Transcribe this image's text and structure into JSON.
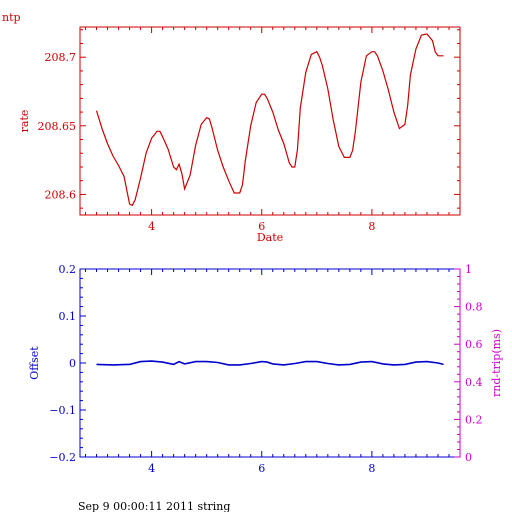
{
  "page": {
    "top_label": "ntp",
    "footer": "Sep  9 00:00:11 2011 string"
  },
  "chart_data": [
    {
      "type": "line",
      "title": "ntp",
      "xlabel": "Date",
      "ylabel": "rate",
      "xlim": [
        2.7,
        9.6
      ],
      "ylim": [
        208.585,
        208.722
      ],
      "xticks": [
        4,
        6,
        8
      ],
      "yticks": [
        208.6,
        208.65,
        208.7
      ],
      "ytick_labels": [
        "208.6",
        "208.65",
        "208.7"
      ],
      "color": "#cc0000",
      "series": [
        {
          "x": [
            3.0,
            3.1,
            3.2,
            3.3,
            3.4,
            3.5,
            3.55,
            3.6,
            3.65,
            3.7,
            3.8,
            3.9,
            4.0,
            4.1,
            4.15,
            4.2,
            4.3,
            4.4,
            4.45,
            4.5,
            4.55,
            4.6,
            4.7,
            4.8,
            4.9,
            5.0,
            5.05,
            5.1,
            5.2,
            5.3,
            5.4,
            5.5,
            5.6,
            5.65,
            5.7,
            5.8,
            5.9,
            6.0,
            6.05,
            6.1,
            6.2,
            6.3,
            6.4,
            6.5,
            6.55,
            6.6,
            6.65,
            6.7,
            6.8,
            6.9,
            7.0,
            7.05,
            7.1,
            7.2,
            7.3,
            7.4,
            7.5,
            7.6,
            7.65,
            7.7,
            7.8,
            7.9,
            8.0,
            8.05,
            8.1,
            8.2,
            8.3,
            8.4,
            8.5,
            8.6,
            8.65,
            8.7,
            8.8,
            8.9,
            9.0,
            9.1,
            9.15,
            9.2,
            9.3
          ],
          "y": [
            208.661,
            208.648,
            208.637,
            208.628,
            208.621,
            208.613,
            208.603,
            208.593,
            208.592,
            208.596,
            208.612,
            208.63,
            208.641,
            208.646,
            208.646,
            208.642,
            208.633,
            208.62,
            208.618,
            208.622,
            208.615,
            208.604,
            208.614,
            208.636,
            208.651,
            208.656,
            208.655,
            208.648,
            208.632,
            208.62,
            208.61,
            208.601,
            208.601,
            208.607,
            208.624,
            208.65,
            208.667,
            208.673,
            208.673,
            208.67,
            208.66,
            208.647,
            208.637,
            208.623,
            208.62,
            208.62,
            208.633,
            208.663,
            208.689,
            208.702,
            208.704,
            208.7,
            208.694,
            208.677,
            208.654,
            208.635,
            208.627,
            208.627,
            208.632,
            208.646,
            208.682,
            208.701,
            208.704,
            208.704,
            208.701,
            208.69,
            208.676,
            208.66,
            208.648,
            208.651,
            208.665,
            208.687,
            208.706,
            208.716,
            208.717,
            208.712,
            208.704,
            208.701,
            208.701
          ]
        }
      ]
    },
    {
      "type": "line",
      "xlabel": "",
      "ylabel": "Offset",
      "ylabel_right": "rnd-trip(ms)",
      "xlim": [
        2.7,
        9.6
      ],
      "ylim": [
        -0.2,
        0.2
      ],
      "ylim_right": [
        0,
        1
      ],
      "xticks": [
        4,
        6,
        8
      ],
      "yticks": [
        -0.2,
        -0.1,
        0,
        0.1,
        0.2
      ],
      "ytick_labels": [
        "−0.2",
        "−0.1",
        "0",
        "0.1",
        "0.2"
      ],
      "yticks_right": [
        0,
        0.2,
        0.4,
        0.6,
        0.8,
        1
      ],
      "ytick_labels_right": [
        "0",
        "0.2",
        "0.4",
        "0.6",
        "0.8",
        "1"
      ],
      "color": "#0000cc",
      "color_right": "#cc00cc",
      "series": [
        {
          "x": [
            3.0,
            3.3,
            3.6,
            3.8,
            4.0,
            4.2,
            4.4,
            4.5,
            4.6,
            4.8,
            5.0,
            5.2,
            5.4,
            5.6,
            5.8,
            6.0,
            6.1,
            6.2,
            6.4,
            6.6,
            6.8,
            7.0,
            7.2,
            7.4,
            7.6,
            7.8,
            8.0,
            8.2,
            8.4,
            8.6,
            8.8,
            9.0,
            9.2,
            9.3
          ],
          "y": [
            -0.003,
            -0.004,
            -0.003,
            0.003,
            0.004,
            0.002,
            -0.003,
            0.003,
            -0.002,
            0.003,
            0.003,
            0.001,
            -0.004,
            -0.004,
            -0.001,
            0.003,
            0.002,
            -0.002,
            -0.004,
            -0.001,
            0.003,
            0.003,
            -0.001,
            -0.004,
            -0.003,
            0.002,
            0.003,
            -0.002,
            -0.004,
            -0.003,
            0.002,
            0.003,
            0.0,
            -0.003
          ]
        }
      ]
    }
  ]
}
